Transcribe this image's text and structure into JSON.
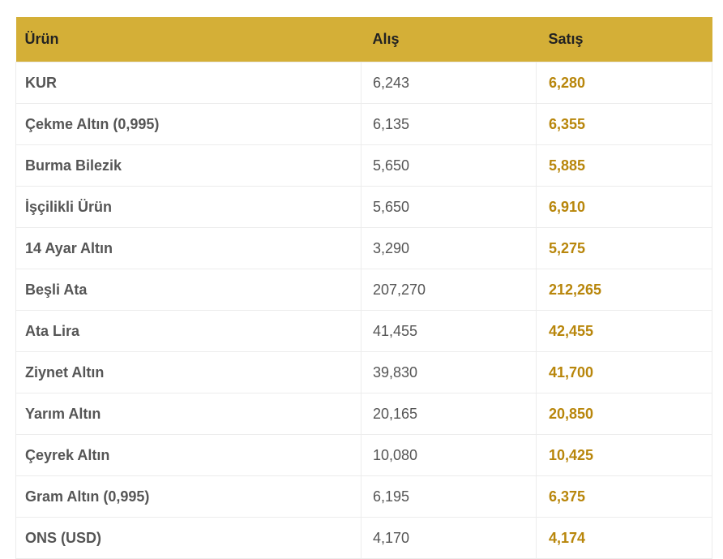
{
  "table": {
    "headers": [
      "Ürün",
      "Alış",
      "Satış"
    ],
    "rows": [
      [
        "KUR",
        "6,243",
        "6,280"
      ],
      [
        "Çekme Altın (0,995)",
        "6,135",
        "6,355"
      ],
      [
        "Burma Bilezik",
        "5,650",
        "5,885"
      ],
      [
        "İşçilikli Ürün",
        "5,650",
        "6,910"
      ],
      [
        "14 Ayar Altın",
        "3,290",
        "5,275"
      ],
      [
        "Beşli Ata",
        "207,270",
        "212,265"
      ],
      [
        "Ata Lira",
        "41,455",
        "42,455"
      ],
      [
        "Ziynet Altın",
        "39,830",
        "41,700"
      ],
      [
        "Yarım Altın",
        "20,165",
        "20,850"
      ],
      [
        "Çeyrek Altın",
        "10,080",
        "10,425"
      ],
      [
        "Gram Altın (0,995)",
        "6,195",
        "6,375"
      ],
      [
        "ONS (USD)",
        "4,170",
        "4,174"
      ]
    ]
  }
}
